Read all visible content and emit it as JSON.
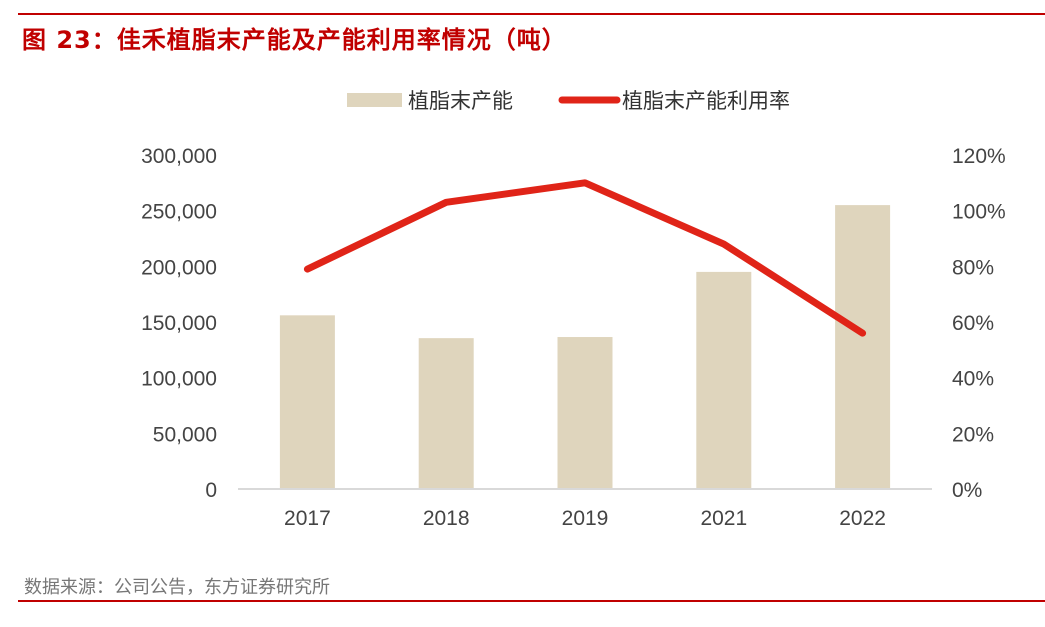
{
  "figure_title": "图 23：佳禾植脂末产能及产能利用率情况（吨）",
  "source": "数据来源：公司公告，东方证券研究所",
  "colors": {
    "bar": "#dfd5bd",
    "line": "#e02418",
    "accent": "#c00000",
    "axis": "#d9d9d9"
  },
  "chart_data": {
    "type": "bar+line",
    "title": "佳禾植脂末产能及产能利用率情况（吨）",
    "categories": [
      "2017",
      "2018",
      "2019",
      "2021",
      "2022"
    ],
    "series": [
      {
        "name": "植脂末产能",
        "type": "bar",
        "axis": "left",
        "values": [
          156000,
          135500,
          136500,
          195000,
          255000
        ]
      },
      {
        "name": "植脂末产能利用率",
        "type": "line",
        "axis": "right",
        "values": [
          0.79,
          1.03,
          1.1,
          0.88,
          0.56
        ]
      }
    ],
    "y_left": {
      "ylim": [
        0,
        300000
      ],
      "ticks": [
        "0",
        "50,000",
        "100,000",
        "150,000",
        "200,000",
        "250,000",
        "300,000"
      ]
    },
    "y_right": {
      "ylim": [
        0,
        1.2
      ],
      "ticks": [
        "0%",
        "20%",
        "40%",
        "60%",
        "80%",
        "100%",
        "120%"
      ]
    },
    "legend": "top",
    "grid": false
  }
}
